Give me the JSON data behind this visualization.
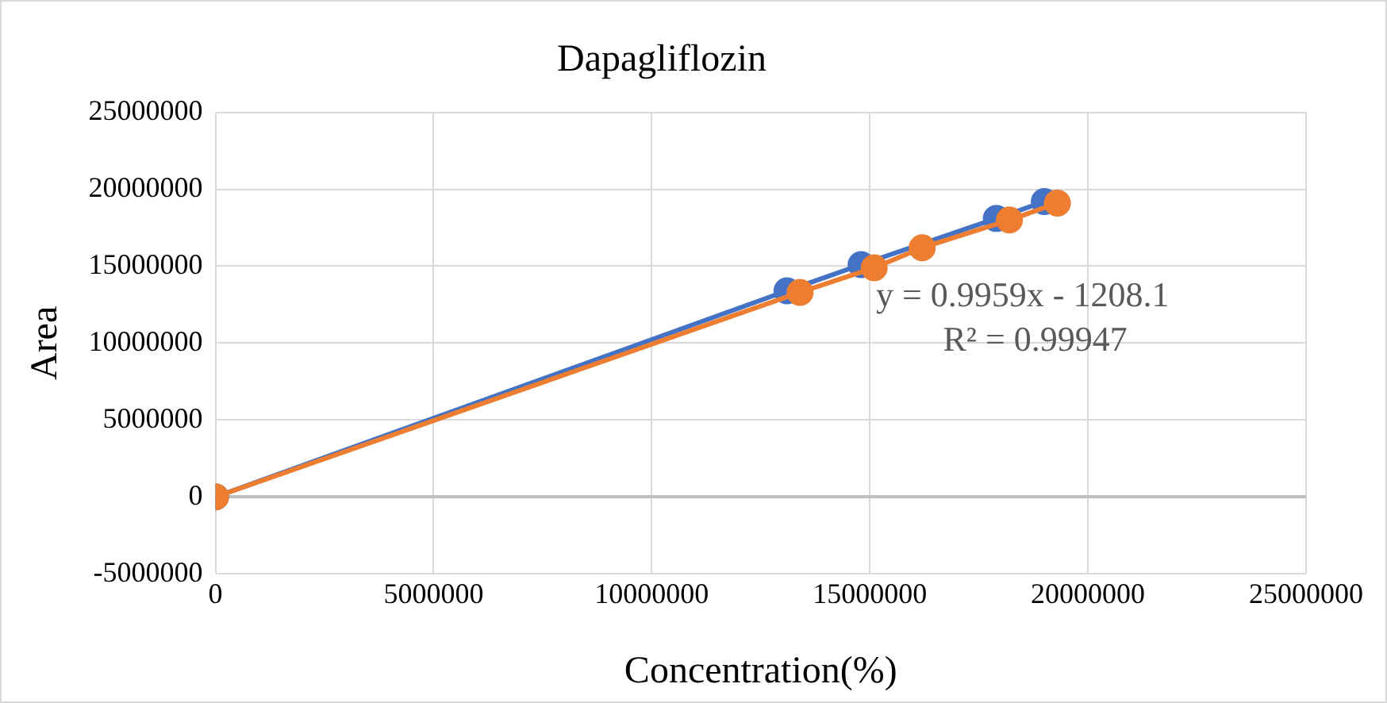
{
  "chart_data": {
    "type": "line",
    "title": "Dapagliflozin",
    "xlabel": "Concentration(%)",
    "ylabel": "Area",
    "series": [
      {
        "color": "#4472c4",
        "x": [
          0,
          13100000,
          14800000,
          16200000,
          17900000,
          19000000
        ],
        "values": [
          0,
          13400000,
          15100000,
          null,
          18100000,
          19200000
        ]
      },
      {
        "color": "#ed7d31",
        "x": [
          0,
          13400000,
          15100000,
          16200000,
          18200000,
          19300000
        ],
        "values": [
          0,
          13300000,
          14900000,
          16200000,
          18000000,
          19100000
        ]
      }
    ],
    "xlim": [
      0,
      25000000
    ],
    "xticks": [
      0,
      5000000,
      10000000,
      15000000,
      20000000,
      25000000
    ],
    "ylim": [
      -5000000,
      25000000
    ],
    "yticks": [
      -5000000,
      0,
      5000000,
      10000000,
      15000000,
      20000000,
      25000000
    ],
    "grid": true,
    "legend": false,
    "marker": "circle",
    "line_style": "solid",
    "annotations": [
      "y = 0.9959x - 1208.1",
      "R² = 0.99947"
    ]
  }
}
